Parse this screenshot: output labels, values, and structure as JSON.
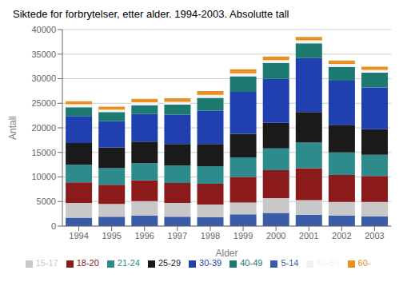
{
  "chart_data": {
    "type": "bar",
    "title": "Siktede for forbrytelser, etter alder. 1994-2003. Absolutte tall",
    "ylabel": "Antall",
    "xlabel": "Alder",
    "categories": [
      "1994",
      "1995",
      "1996",
      "1997",
      "1998",
      "1999",
      "2000",
      "2001",
      "2002",
      "2003"
    ],
    "series": [
      {
        "name": "5-14",
        "color": "#3a5ca8",
        "values": [
          1700,
          1900,
          2100,
          1900,
          1800,
          2400,
          2700,
          2300,
          2100,
          2000
        ]
      },
      {
        "name": "15-17",
        "color": "#c8c8c8",
        "values": [
          3000,
          2600,
          3000,
          2800,
          2600,
          2400,
          3000,
          3000,
          2800,
          2900
        ]
      },
      {
        "name": "18-20",
        "color": "#8b1a1a",
        "values": [
          4200,
          3900,
          4200,
          4100,
          4200,
          5200,
          5700,
          6500,
          5500,
          5300
        ]
      },
      {
        "name": "21-24",
        "color": "#2e8b8b",
        "values": [
          3600,
          3400,
          3500,
          3500,
          3600,
          4000,
          4400,
          5200,
          4600,
          4300
        ]
      },
      {
        "name": "25-29",
        "color": "#1a1a1a",
        "values": [
          4400,
          4200,
          4400,
          4400,
          4500,
          4800,
          5200,
          6200,
          5600,
          5200
        ]
      },
      {
        "name": "30-39",
        "color": "#2040b0",
        "values": [
          5500,
          5400,
          5600,
          6000,
          6800,
          8500,
          9000,
          11000,
          9000,
          8500
        ]
      },
      {
        "name": "40-49",
        "color": "#1d7a70",
        "values": [
          1800,
          1800,
          1800,
          2000,
          2600,
          3200,
          3200,
          3000,
          2800,
          3000
        ]
      },
      {
        "name": "50-59",
        "color": "#f2f2f2",
        "values": [
          600,
          500,
          600,
          600,
          600,
          600,
          600,
          600,
          600,
          600
        ]
      },
      {
        "name": "60-",
        "color": "#e89020",
        "values": [
          600,
          600,
          700,
          700,
          800,
          800,
          700,
          700,
          700,
          650
        ]
      }
    ],
    "stacked": true,
    "ylim": [
      0,
      40000
    ],
    "yticks": [
      0,
      5000,
      10000,
      15000,
      20000,
      25000,
      30000,
      35000,
      40000
    ],
    "grid": true
  }
}
